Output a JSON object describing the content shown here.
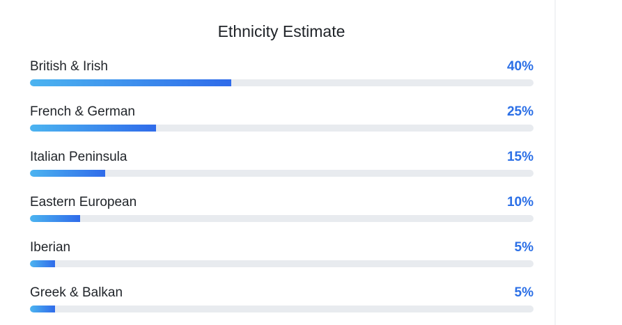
{
  "panel": {
    "title": "Ethnicity Estimate"
  },
  "colors": {
    "accent": "#2b6fe6",
    "bar_start": "#4cb4f0",
    "bar_end": "#2f6bea",
    "track": "#e8ebef"
  },
  "regions": [
    {
      "label": "British & Irish",
      "percent_label": "40%",
      "percent": 40
    },
    {
      "label": "French & German",
      "percent_label": "25%",
      "percent": 25
    },
    {
      "label": "Italian Peninsula",
      "percent_label": "15%",
      "percent": 15
    },
    {
      "label": "Eastern European",
      "percent_label": "10%",
      "percent": 10
    },
    {
      "label": "Iberian",
      "percent_label": "5%",
      "percent": 5
    },
    {
      "label": "Greek & Balkan",
      "percent_label": "5%",
      "percent": 5
    }
  ]
}
